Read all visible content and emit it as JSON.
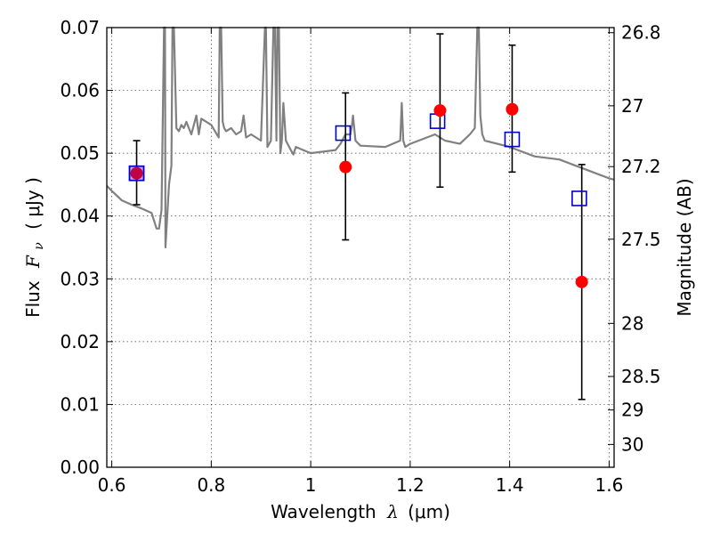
{
  "chart_data": {
    "type": "scatter",
    "xlabel_text": "Wavelength",
    "xlabel_symbol": "λ",
    "xlabel_unit": "(μm)",
    "ylabel_text": "Flux",
    "ylabel_symbol": "F",
    "ylabel_subscript": "ν",
    "ylabel_unit": "( μJy )",
    "y2label": "Magnitude (AB)",
    "xlim": [
      0.59,
      1.61
    ],
    "ylim": [
      0.0,
      0.07
    ],
    "grid": true,
    "x_ticks": [
      0.6,
      0.8,
      1.0,
      1.2,
      1.4,
      1.6
    ],
    "x_tick_labels": [
      "0.6",
      "0.8",
      "1",
      "1.2",
      "1.4",
      "1.6"
    ],
    "y_ticks": [
      0.0,
      0.01,
      0.02,
      0.03,
      0.04,
      0.05,
      0.06,
      0.07
    ],
    "y_tick_labels": [
      "0.00",
      "0.01",
      "0.02",
      "0.03",
      "0.04",
      "0.05",
      "0.06",
      "0.07"
    ],
    "y2_ticks": [
      26.8,
      27.0,
      27.2,
      27.5,
      28.0,
      28.5,
      29.0,
      30.0
    ],
    "y2_tick_labels": [
      "26.8",
      "27",
      "27.2",
      "27.5",
      "28",
      "28.5",
      "29",
      "30"
    ],
    "colors": {
      "model": "#808080",
      "observed": "#ff0000",
      "model_phot": "#0000cc",
      "errorbar": "#000000"
    },
    "series": [
      {
        "kind": "errorbar",
        "x": [
          0.65,
          1.07,
          1.26,
          1.405,
          1.545
        ],
        "y": [
          0.0468,
          0.0478,
          0.0568,
          0.057,
          0.0295
        ],
        "yerr_low": [
          0.005,
          0.0116,
          0.0122,
          0.01,
          0.0187
        ],
        "yerr_high": [
          0.0052,
          0.0118,
          0.0122,
          0.0102,
          0.0187
        ]
      },
      {
        "kind": "model_photometry",
        "x": [
          0.65,
          1.065,
          1.255,
          1.405,
          1.54
        ],
        "y": [
          0.0468,
          0.0532,
          0.0551,
          0.0522,
          0.0428
        ]
      },
      {
        "kind": "sed_model",
        "x": [
          0.59,
          0.6,
          0.62,
          0.64,
          0.66,
          0.68,
          0.69,
          0.695,
          0.7,
          0.705,
          0.707,
          0.708,
          0.715,
          0.72,
          0.722,
          0.725,
          0.73,
          0.735,
          0.74,
          0.745,
          0.75,
          0.76,
          0.77,
          0.775,
          0.78,
          0.8,
          0.815,
          0.817,
          0.82,
          0.823,
          0.826,
          0.83,
          0.84,
          0.85,
          0.86,
          0.865,
          0.87,
          0.88,
          0.9,
          0.908,
          0.91,
          0.913,
          0.92,
          0.925,
          0.928,
          0.931,
          0.933,
          0.936,
          0.939,
          0.942,
          0.945,
          0.95,
          0.96,
          0.965,
          0.97,
          1.0,
          1.05,
          1.06,
          1.07,
          1.08,
          1.083,
          1.085,
          1.09,
          1.1,
          1.15,
          1.18,
          1.183,
          1.186,
          1.19,
          1.2,
          1.25,
          1.27,
          1.3,
          1.32,
          1.33,
          1.335,
          1.338,
          1.341,
          1.345,
          1.35,
          1.4,
          1.45,
          1.5,
          1.55,
          1.6,
          1.61
        ],
        "y": [
          0.0448,
          0.044,
          0.0425,
          0.0418,
          0.0412,
          0.0405,
          0.038,
          0.038,
          0.041,
          0.07,
          0.07,
          0.035,
          0.045,
          0.048,
          0.07,
          0.07,
          0.054,
          0.0535,
          0.0545,
          0.054,
          0.055,
          0.053,
          0.056,
          0.053,
          0.0555,
          0.0545,
          0.0525,
          0.07,
          0.07,
          0.055,
          0.054,
          0.0535,
          0.054,
          0.053,
          0.0535,
          0.056,
          0.0525,
          0.053,
          0.052,
          0.07,
          0.07,
          0.051,
          0.052,
          0.07,
          0.07,
          0.052,
          0.07,
          0.07,
          0.05,
          0.052,
          0.058,
          0.052,
          0.0505,
          0.0498,
          0.051,
          0.05,
          0.0505,
          0.0515,
          0.053,
          0.053,
          0.0545,
          0.056,
          0.052,
          0.0512,
          0.051,
          0.052,
          0.058,
          0.052,
          0.051,
          0.0515,
          0.053,
          0.052,
          0.0515,
          0.053,
          0.054,
          0.07,
          0.07,
          0.056,
          0.053,
          0.052,
          0.051,
          0.0495,
          0.049,
          0.0475,
          0.046,
          0.0458
        ]
      }
    ]
  }
}
